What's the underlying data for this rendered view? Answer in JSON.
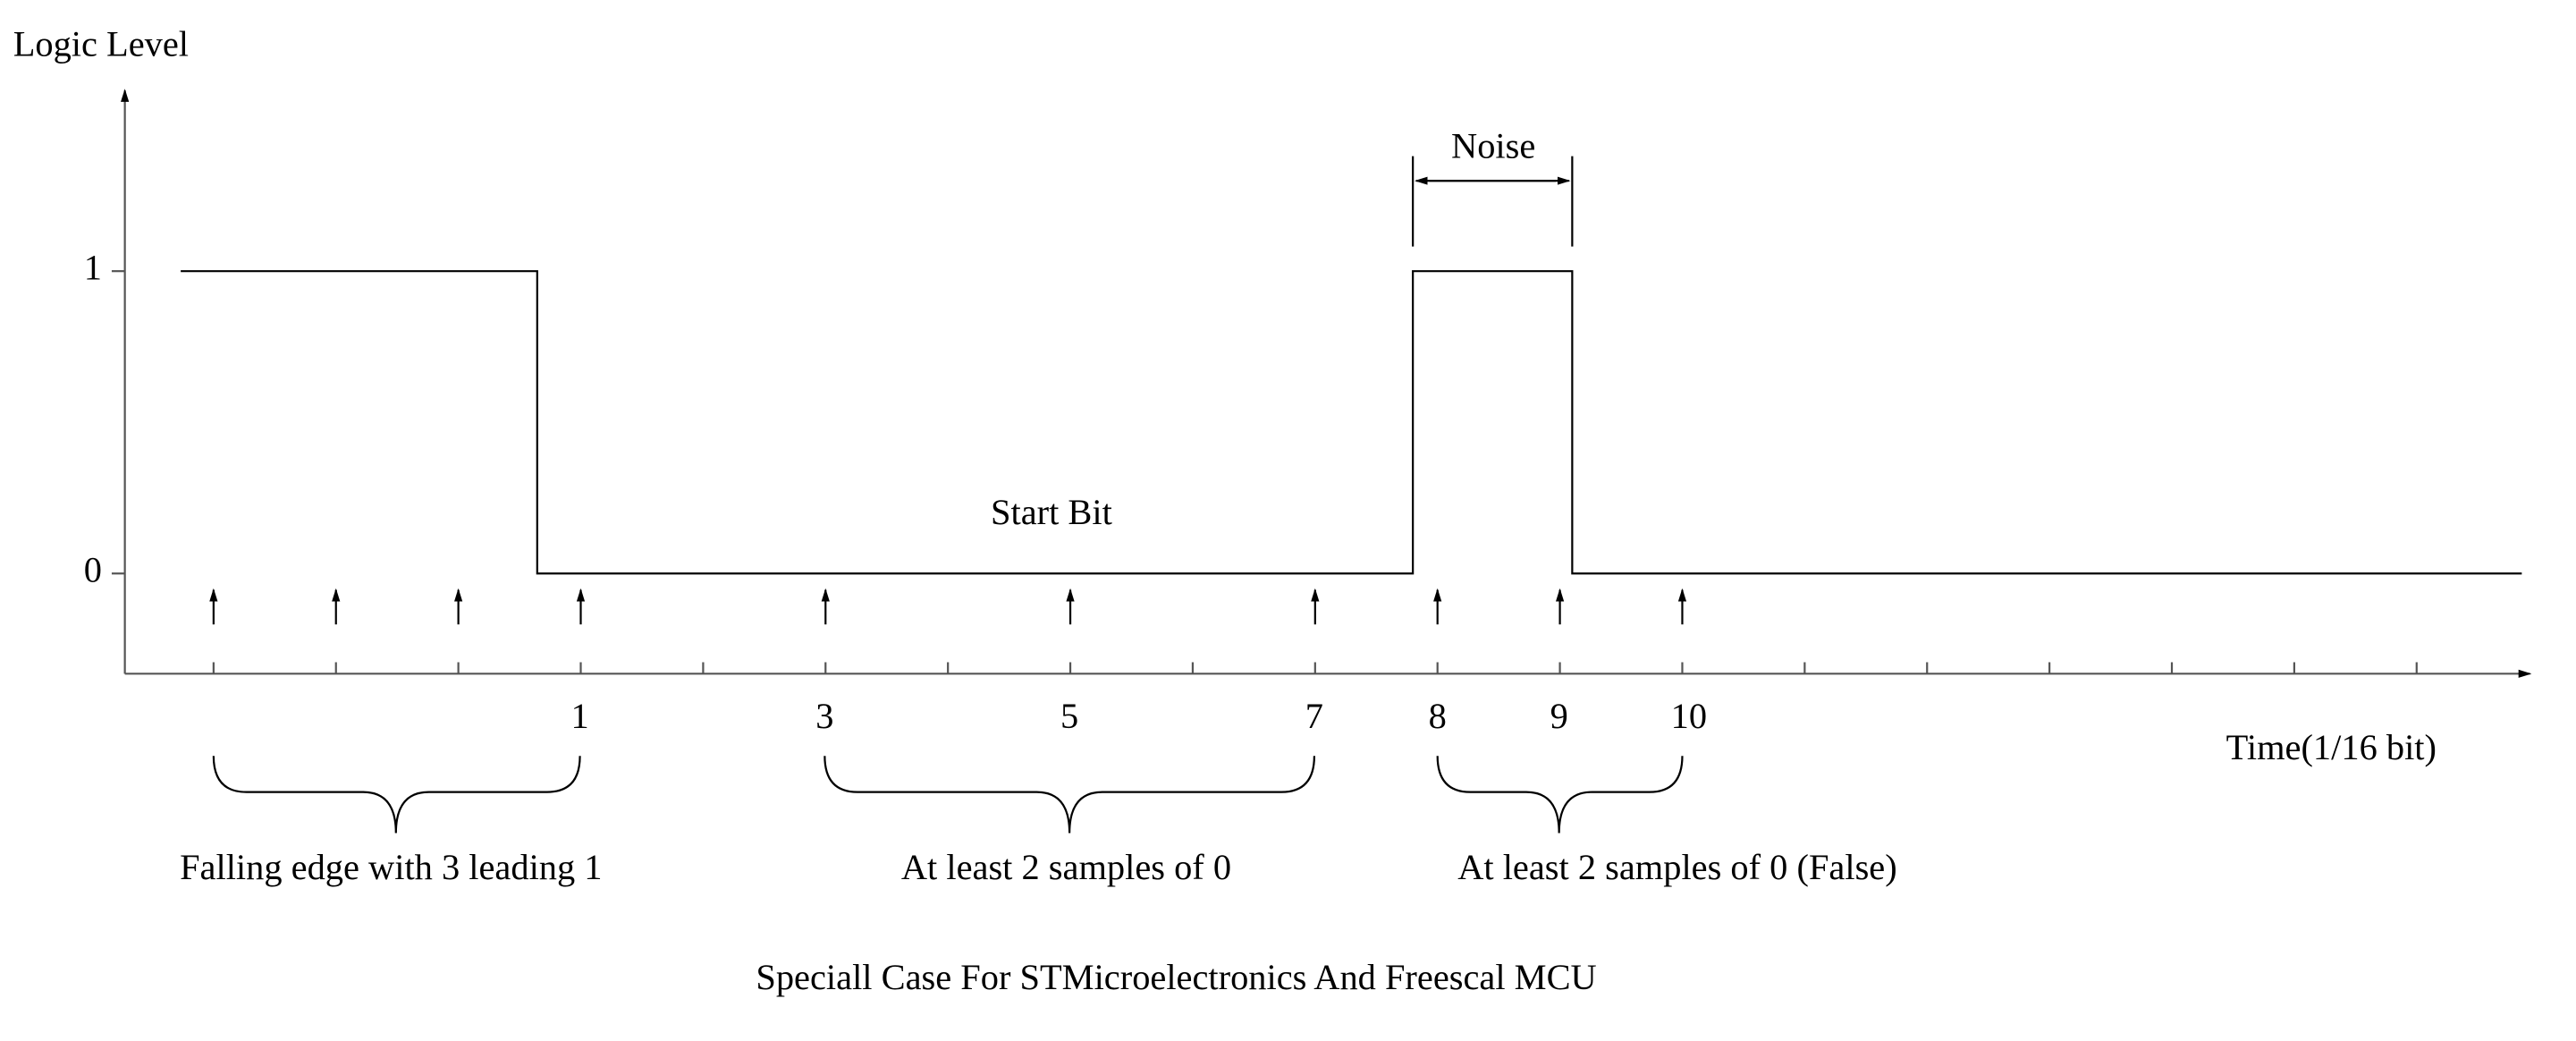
{
  "y_axis_label": "Logic Level",
  "x_axis_label": "Time(1/16 bit)",
  "y_levels": [
    "1",
    "0"
  ],
  "signal_label": "Start Bit",
  "noise_label": "Noise",
  "sample_labels": [
    "1",
    "3",
    "5",
    "7",
    "8",
    "9",
    "10"
  ],
  "brace_labels": [
    "Falling edge with 3 leading 1",
    "At least 2 samples of 0",
    "At least 2 samples of 0 (False)"
  ],
  "caption": "Speciall Case For STMicroelectronics And Freescal MCU"
}
